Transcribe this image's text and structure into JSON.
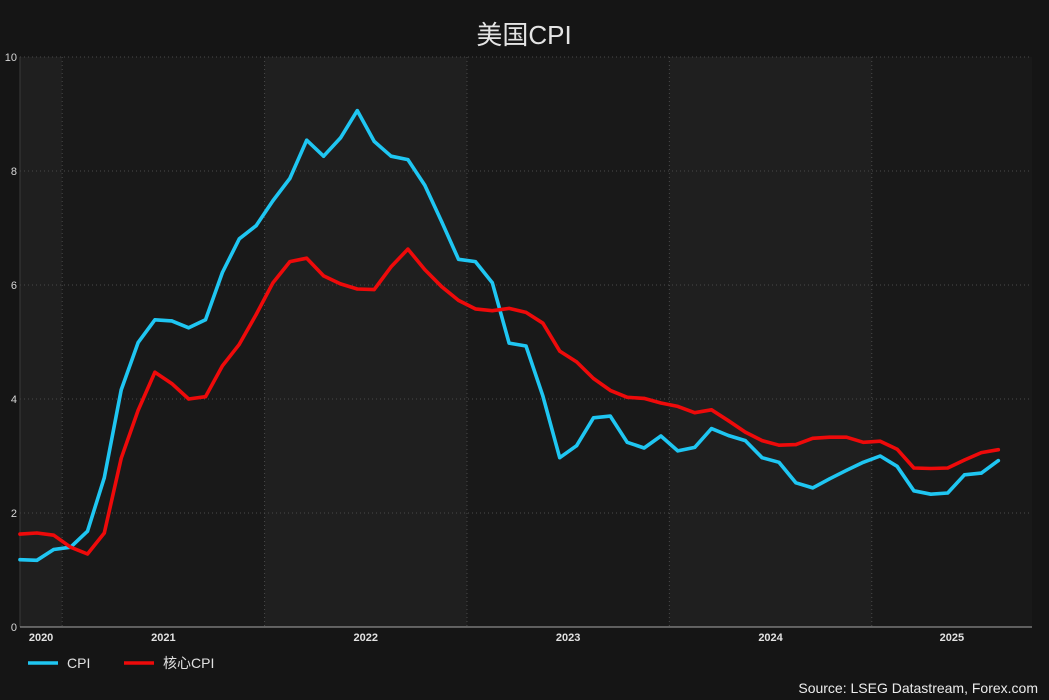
{
  "chart_data": {
    "type": "line",
    "title": "美国CPI",
    "x": [
      "2020-10",
      "2020-11",
      "2020-12",
      "2021-01",
      "2021-02",
      "2021-03",
      "2021-04",
      "2021-05",
      "2021-06",
      "2021-07",
      "2021-08",
      "2021-09",
      "2021-10",
      "2021-11",
      "2021-12",
      "2022-01",
      "2022-02",
      "2022-03",
      "2022-04",
      "2022-05",
      "2022-06",
      "2022-07",
      "2022-08",
      "2022-09",
      "2022-10",
      "2022-11",
      "2022-12",
      "2023-01",
      "2023-02",
      "2023-03",
      "2023-04",
      "2023-05",
      "2023-06",
      "2023-07",
      "2023-08",
      "2023-09",
      "2023-10",
      "2023-11",
      "2023-12",
      "2024-01",
      "2024-02",
      "2024-03",
      "2024-04",
      "2024-05",
      "2024-06",
      "2024-07",
      "2024-08",
      "2024-09",
      "2024-10",
      "2024-11",
      "2024-12",
      "2025-01",
      "2025-02",
      "2025-03",
      "2025-04",
      "2025-05",
      "2025-06",
      "2025-07",
      "2025-08"
    ],
    "xticks": [
      "2020",
      "2021",
      "2022",
      "2023",
      "2024",
      "2025"
    ],
    "xlim": [
      "2020-10",
      "2025-10"
    ],
    "yticks": [
      0,
      2,
      4,
      6,
      8,
      10
    ],
    "ylim": [
      0,
      10
    ],
    "grid": true,
    "legend": "bottom-left",
    "series": [
      {
        "name": "CPI",
        "color": "#1fc6f2",
        "values": [
          1.18,
          1.17,
          1.36,
          1.4,
          1.68,
          2.62,
          4.16,
          4.99,
          5.39,
          5.37,
          5.25,
          5.39,
          6.22,
          6.81,
          7.04,
          7.48,
          7.87,
          8.54,
          8.26,
          8.58,
          9.06,
          8.52,
          8.26,
          8.2,
          7.75,
          7.11,
          6.45,
          6.41,
          6.04,
          4.98,
          4.93,
          4.05,
          2.97,
          3.18,
          3.67,
          3.7,
          3.24,
          3.14,
          3.35,
          3.09,
          3.15,
          3.48,
          3.36,
          3.27,
          2.97,
          2.89,
          2.53,
          2.44,
          2.6,
          2.75,
          2.89,
          3.0,
          2.82,
          2.39,
          2.33,
          2.35,
          2.67,
          2.7,
          2.92
        ]
      },
      {
        "name": "核心CPI",
        "color": "#ee0a0a",
        "values": [
          1.63,
          1.65,
          1.61,
          1.4,
          1.28,
          1.65,
          2.96,
          3.8,
          4.47,
          4.27,
          4.0,
          4.04,
          4.58,
          4.96,
          5.48,
          6.04,
          6.41,
          6.47,
          6.16,
          6.02,
          5.93,
          5.92,
          6.32,
          6.63,
          6.27,
          5.97,
          5.73,
          5.58,
          5.55,
          5.59,
          5.52,
          5.33,
          4.84,
          4.65,
          4.36,
          4.15,
          4.03,
          4.01,
          3.93,
          3.87,
          3.76,
          3.81,
          3.62,
          3.42,
          3.27,
          3.19,
          3.2,
          3.31,
          3.33,
          3.33,
          3.24,
          3.26,
          3.12,
          2.79,
          2.78,
          2.79,
          2.93,
          3.06,
          3.11
        ]
      }
    ],
    "source": "Source: LSEG Datastream, Forex.com"
  }
}
